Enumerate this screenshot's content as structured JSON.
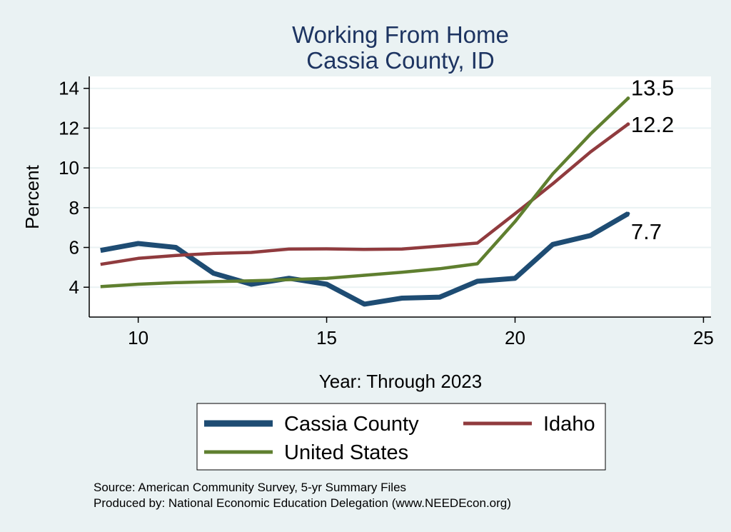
{
  "chart_data": {
    "type": "line",
    "title": [
      "Working From Home",
      "Cassia County, ID"
    ],
    "xlabel": "Year: Through 2023",
    "ylabel": "Percent",
    "xlim": [
      8.7,
      25.2
    ],
    "ylim": [
      2.5,
      14.6
    ],
    "xticks": [
      10,
      15,
      20,
      25
    ],
    "yticks": [
      4,
      6,
      8,
      10,
      12,
      14
    ],
    "grid": true,
    "legend_position": "bottom",
    "series": [
      {
        "name": "Cassia County",
        "color": "#1e4c73",
        "x": [
          9,
          10,
          11,
          12,
          13,
          14,
          15,
          16,
          17,
          18,
          19,
          20,
          21,
          22,
          23
        ],
        "y": [
          5.85,
          6.2,
          6.0,
          4.7,
          4.15,
          4.45,
          4.15,
          3.15,
          3.45,
          3.5,
          4.3,
          4.45,
          6.15,
          6.6,
          7.7
        ],
        "end_label": "7.7"
      },
      {
        "name": "Idaho",
        "color": "#903b3e",
        "x": [
          9,
          10,
          11,
          12,
          13,
          14,
          15,
          16,
          17,
          18,
          19,
          20,
          21,
          22,
          23
        ],
        "y": [
          5.15,
          5.45,
          5.6,
          5.7,
          5.75,
          5.92,
          5.93,
          5.9,
          5.92,
          6.07,
          6.22,
          7.7,
          9.2,
          10.8,
          12.2
        ],
        "end_label": "12.2"
      },
      {
        "name": "United States",
        "color": "#5f7f2f",
        "x": [
          9,
          10,
          11,
          12,
          13,
          14,
          15,
          16,
          17,
          18,
          19,
          20,
          21,
          22,
          23
        ],
        "y": [
          4.03,
          4.15,
          4.23,
          4.28,
          4.32,
          4.38,
          4.45,
          4.6,
          4.75,
          4.93,
          5.18,
          7.3,
          9.7,
          11.7,
          13.5
        ],
        "end_label": "13.5"
      }
    ]
  },
  "legend": {
    "items": [
      {
        "label": "Cassia County",
        "color": "#1e4c73"
      },
      {
        "label": "Idaho",
        "color": "#903b3e"
      },
      {
        "label": "United States",
        "color": "#5f7f2f"
      }
    ]
  },
  "notes": {
    "source": "Source: American Community Survey, 5-yr Summary Files",
    "produced_by": "Produced by: National Economic Education Delegation (www.NEEDEcon.org)"
  }
}
